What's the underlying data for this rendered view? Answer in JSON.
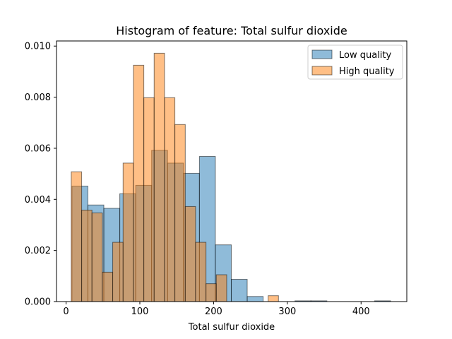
{
  "chart_data": {
    "type": "bar",
    "title": "Histogram of feature: Total sulfur dioxide",
    "xlabel": "Total sulfur dioxide",
    "ylabel": "",
    "xlim": [
      -13,
      462
    ],
    "ylim": [
      0,
      0.0102
    ],
    "xticks": [
      0,
      100,
      200,
      300,
      400
    ],
    "yticks": [
      0.0,
      0.002,
      0.004,
      0.006,
      0.008,
      0.01
    ],
    "ytick_labels": [
      "0.000",
      "0.002",
      "0.004",
      "0.006",
      "0.008",
      "0.010"
    ],
    "grid": false,
    "legend_position": "top-right",
    "series": [
      {
        "name": "Low quality",
        "color": "#1f77b4",
        "bins": [
          {
            "x0": 8.0,
            "x1": 29.6,
            "value": 0.00452
          },
          {
            "x0": 29.6,
            "x1": 51.2,
            "value": 0.00378
          },
          {
            "x0": 51.2,
            "x1": 72.8,
            "value": 0.00365
          },
          {
            "x0": 72.8,
            "x1": 94.4,
            "value": 0.00422
          },
          {
            "x0": 94.4,
            "x1": 116.0,
            "value": 0.00455
          },
          {
            "x0": 116.0,
            "x1": 137.6,
            "value": 0.00592
          },
          {
            "x0": 137.6,
            "x1": 159.2,
            "value": 0.00542
          },
          {
            "x0": 159.2,
            "x1": 180.8,
            "value": 0.00502
          },
          {
            "x0": 180.8,
            "x1": 202.4,
            "value": 0.00568
          },
          {
            "x0": 202.4,
            "x1": 224.0,
            "value": 0.00222
          },
          {
            "x0": 224.0,
            "x1": 245.6,
            "value": 0.00087
          },
          {
            "x0": 245.6,
            "x1": 267.2,
            "value": 0.0002
          },
          {
            "x0": 267.2,
            "x1": 288.8,
            "value": 0.0
          },
          {
            "x0": 288.8,
            "x1": 310.4,
            "value": 0.0
          },
          {
            "x0": 310.4,
            "x1": 332.0,
            "value": 3e-05
          },
          {
            "x0": 332.0,
            "x1": 353.6,
            "value": 3e-05
          },
          {
            "x0": 353.6,
            "x1": 375.2,
            "value": 0.0
          },
          {
            "x0": 375.2,
            "x1": 396.8,
            "value": 0.0
          },
          {
            "x0": 396.8,
            "x1": 418.4,
            "value": 0.0
          },
          {
            "x0": 418.4,
            "x1": 440.0,
            "value": 3e-05
          }
        ]
      },
      {
        "name": "High quality",
        "color": "#ff7f0e",
        "bins": [
          {
            "x0": 7.0,
            "x1": 21.1,
            "value": 0.00508
          },
          {
            "x0": 21.1,
            "x1": 35.1,
            "value": 0.00358
          },
          {
            "x0": 35.1,
            "x1": 49.2,
            "value": 0.00347
          },
          {
            "x0": 49.2,
            "x1": 63.2,
            "value": 0.00115
          },
          {
            "x0": 63.2,
            "x1": 77.3,
            "value": 0.00232
          },
          {
            "x0": 77.3,
            "x1": 91.3,
            "value": 0.00542
          },
          {
            "x0": 91.3,
            "x1": 105.4,
            "value": 0.00925
          },
          {
            "x0": 105.4,
            "x1": 119.4,
            "value": 0.00798
          },
          {
            "x0": 119.4,
            "x1": 133.5,
            "value": 0.00972
          },
          {
            "x0": 133.5,
            "x1": 147.5,
            "value": 0.00798
          },
          {
            "x0": 147.5,
            "x1": 161.6,
            "value": 0.00693
          },
          {
            "x0": 161.6,
            "x1": 175.6,
            "value": 0.00372
          },
          {
            "x0": 175.6,
            "x1": 189.7,
            "value": 0.00232
          },
          {
            "x0": 189.7,
            "x1": 203.7,
            "value": 0.0007
          },
          {
            "x0": 203.7,
            "x1": 217.8,
            "value": 0.00105
          },
          {
            "x0": 217.8,
            "x1": 231.8,
            "value": 0.0
          },
          {
            "x0": 231.8,
            "x1": 245.9,
            "value": 0.0
          },
          {
            "x0": 245.9,
            "x1": 259.9,
            "value": 0.0
          },
          {
            "x0": 259.9,
            "x1": 274.0,
            "value": 0.0
          },
          {
            "x0": 274.0,
            "x1": 288.0,
            "value": 0.00023
          }
        ]
      }
    ]
  }
}
